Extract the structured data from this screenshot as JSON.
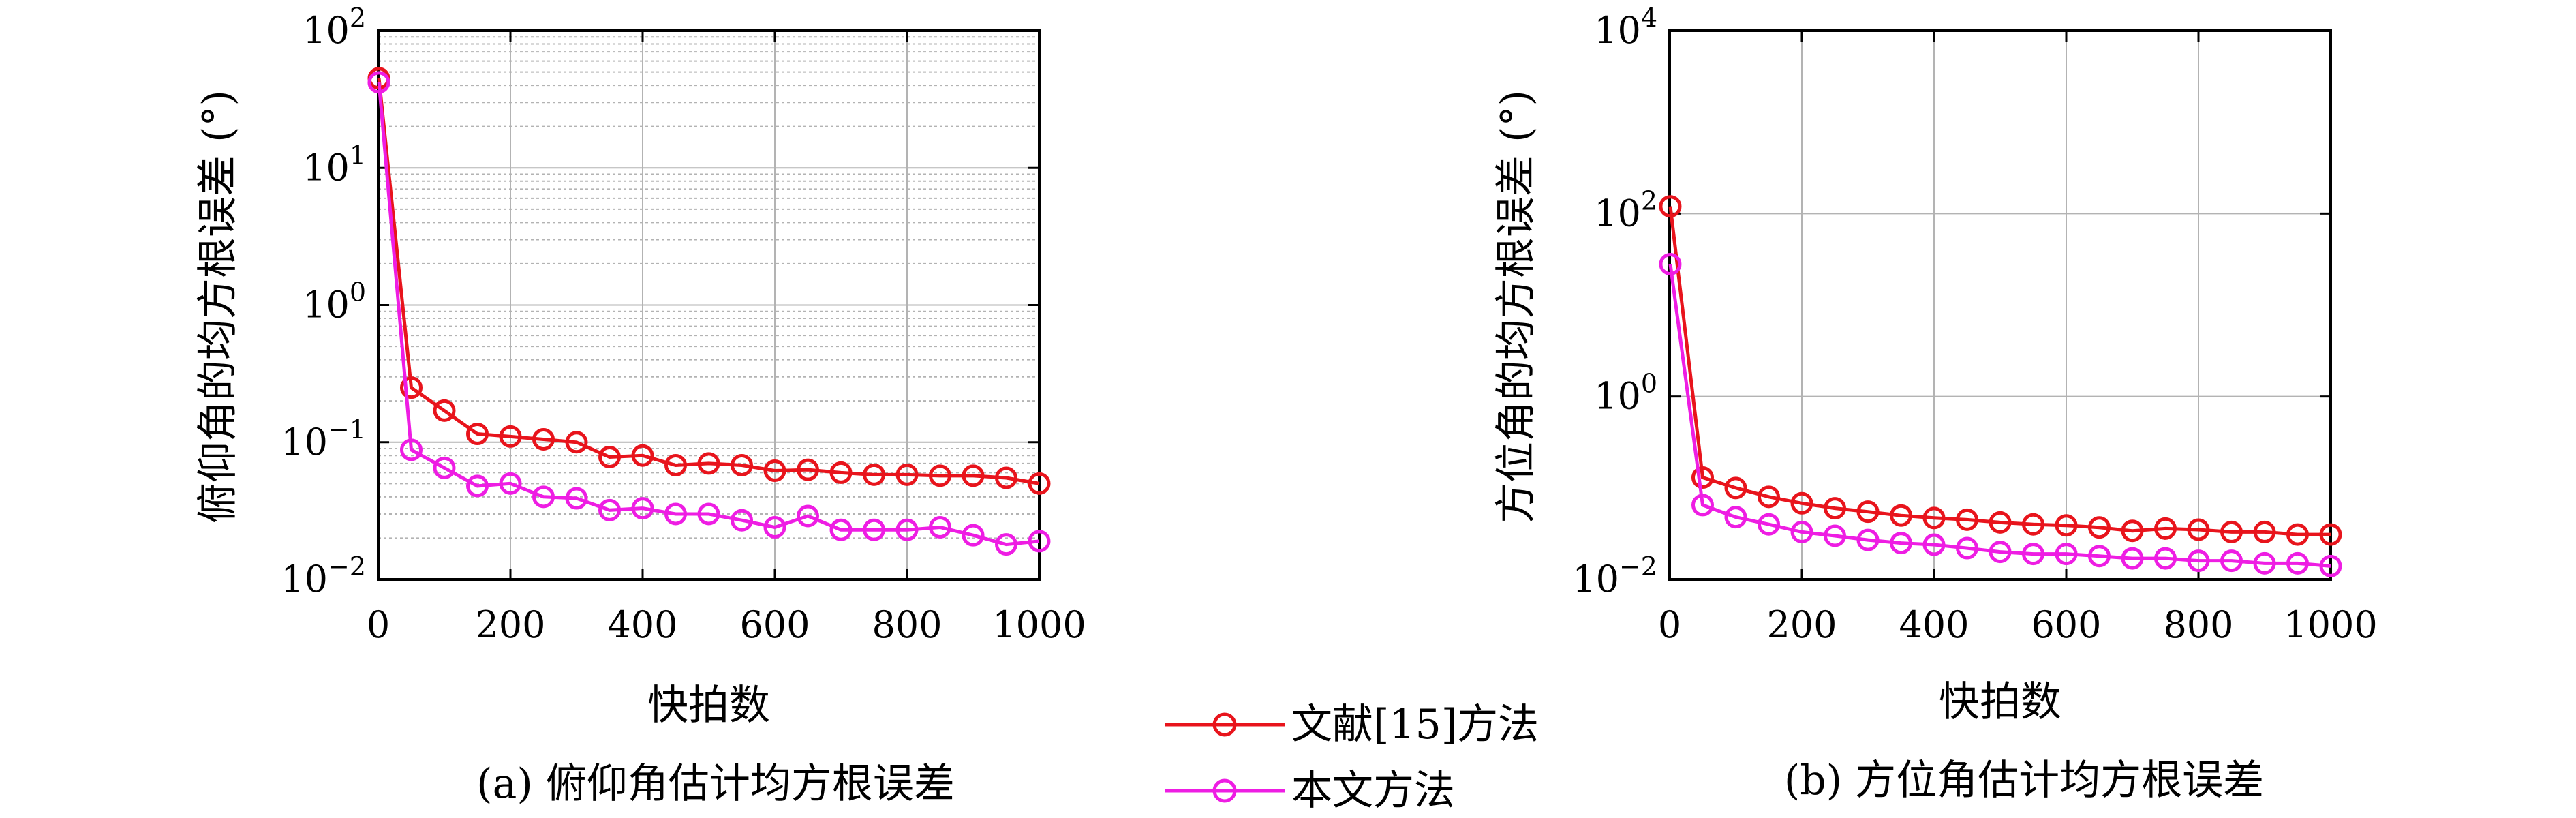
{
  "chart_data": [
    {
      "type": "line",
      "yscale": "log",
      "xlim": [
        0,
        1000
      ],
      "ylim": [
        0.01,
        100
      ],
      "xticks": [
        0,
        200,
        400,
        600,
        800,
        1000
      ],
      "yticks": [
        {
          "value": 0.01,
          "base": "10",
          "exp": "−2"
        },
        {
          "value": 0.1,
          "base": "10",
          "exp": "−1"
        },
        {
          "value": 1,
          "base": "10",
          "exp": "0"
        },
        {
          "value": 10,
          "base": "10",
          "exp": "1"
        },
        {
          "value": 100,
          "base": "10",
          "exp": "2"
        }
      ],
      "grid": "major-and-minor",
      "xlabel": "快拍数",
      "ylabel": "俯仰角的均方根误差 (°)",
      "caption": "(a) 俯仰角估计均方根误差",
      "x": [
        1,
        50,
        100,
        150,
        200,
        250,
        300,
        350,
        400,
        450,
        500,
        550,
        600,
        650,
        700,
        750,
        800,
        850,
        900,
        950,
        1000
      ],
      "series": [
        {
          "name": "文献[15]方法",
          "color": "#e8141c",
          "values": [
            45,
            0.25,
            0.17,
            0.115,
            0.11,
            0.105,
            0.1,
            0.078,
            0.08,
            0.068,
            0.07,
            0.068,
            0.062,
            0.063,
            0.06,
            0.058,
            0.058,
            0.057,
            0.057,
            0.055,
            0.05
          ]
        },
        {
          "name": "本文方法",
          "color": "#ee1de3",
          "values": [
            42,
            0.088,
            0.065,
            0.048,
            0.05,
            0.04,
            0.039,
            0.032,
            0.033,
            0.03,
            0.03,
            0.027,
            0.024,
            0.029,
            0.023,
            0.023,
            0.023,
            0.024,
            0.021,
            0.018,
            0.019
          ]
        }
      ]
    },
    {
      "type": "line",
      "yscale": "log",
      "xlim": [
        0,
        1000
      ],
      "ylim": [
        0.01,
        10000
      ],
      "xticks": [
        0,
        200,
        400,
        600,
        800,
        1000
      ],
      "yticks": [
        {
          "value": 0.01,
          "base": "10",
          "exp": "−2"
        },
        {
          "value": 1,
          "base": "10",
          "exp": "0"
        },
        {
          "value": 100,
          "base": "10",
          "exp": "2"
        },
        {
          "value": 10000,
          "base": "10",
          "exp": "4"
        }
      ],
      "grid": "major",
      "xlabel": "快拍数",
      "ylabel": "方位角的均方根误差 (°)",
      "caption": "(b) 方位角估计均方根误差",
      "x": [
        1,
        50,
        100,
        150,
        200,
        250,
        300,
        350,
        400,
        450,
        500,
        550,
        600,
        650,
        700,
        750,
        800,
        850,
        900,
        950,
        1000
      ],
      "series": [
        {
          "name": "文献[15]方法",
          "color": "#e8141c",
          "values": [
            120,
            0.13,
            0.1,
            0.08,
            0.068,
            0.06,
            0.055,
            0.05,
            0.047,
            0.045,
            0.042,
            0.04,
            0.039,
            0.037,
            0.034,
            0.036,
            0.035,
            0.033,
            0.033,
            0.031,
            0.031
          ]
        },
        {
          "name": "本文方法",
          "color": "#ee1de3",
          "values": [
            28,
            0.065,
            0.048,
            0.04,
            0.033,
            0.03,
            0.027,
            0.025,
            0.024,
            0.022,
            0.02,
            0.019,
            0.019,
            0.018,
            0.017,
            0.017,
            0.016,
            0.016,
            0.015,
            0.015,
            0.014
          ]
        }
      ]
    }
  ],
  "legend": [
    {
      "label": "文献[15]方法",
      "color": "#e8141c"
    },
    {
      "label": "本文方法",
      "color": "#ee1de3"
    }
  ]
}
